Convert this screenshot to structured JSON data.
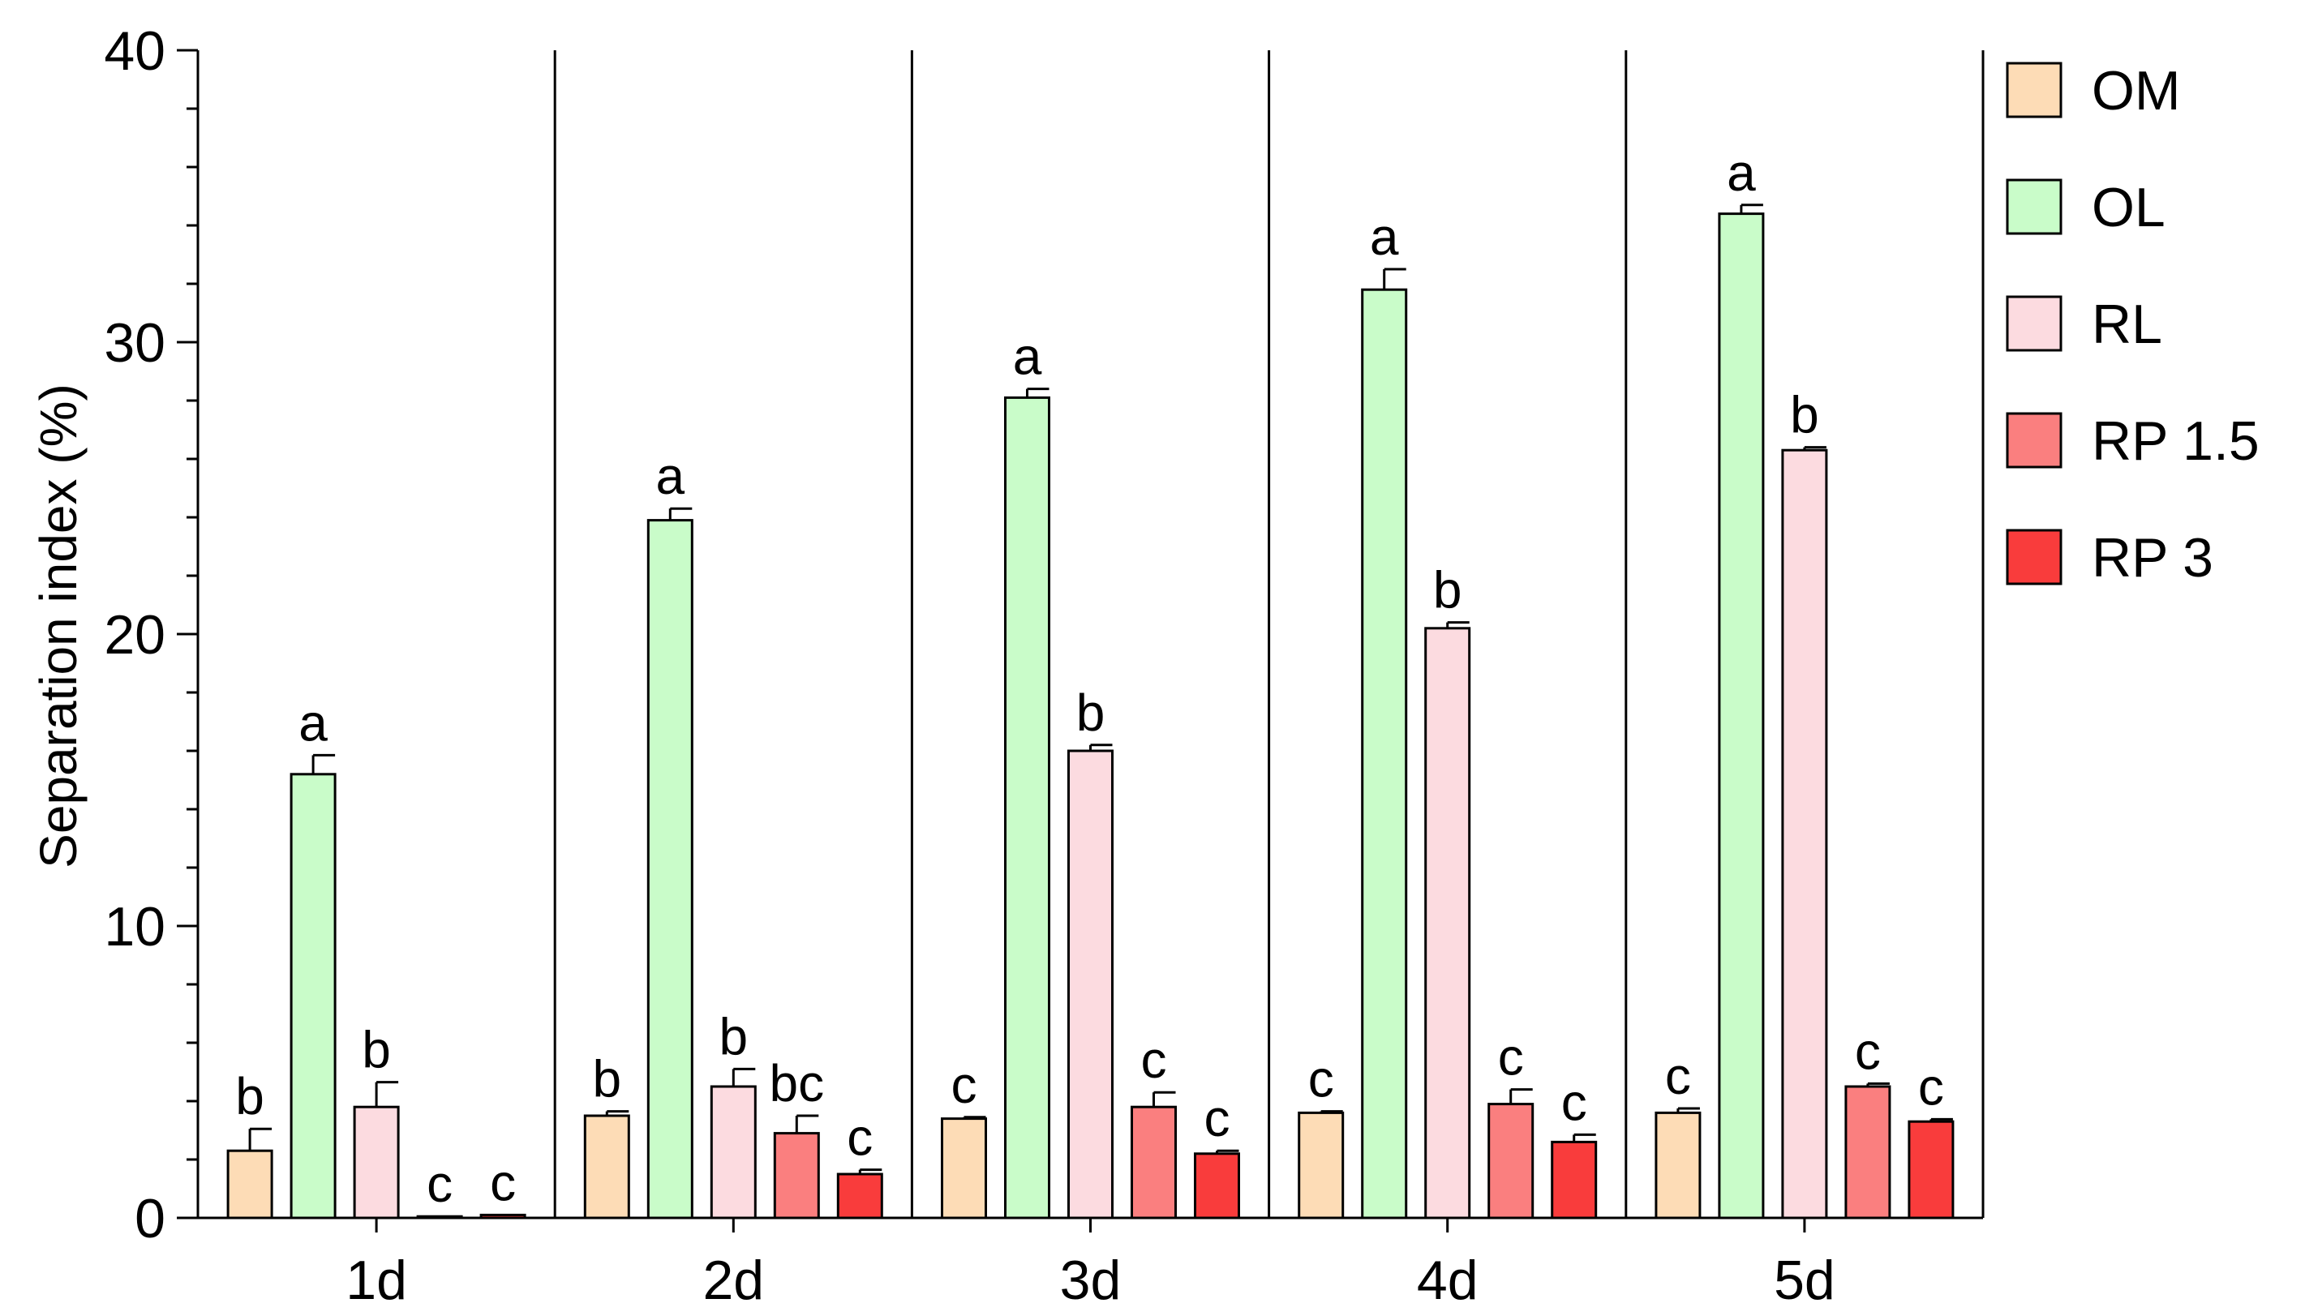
{
  "chart_data": {
    "type": "bar",
    "title": "",
    "xlabel": "",
    "ylabel": "Separation index (%)",
    "ylim": [
      0,
      40
    ],
    "yticks": [
      "0",
      "10",
      "20",
      "30",
      "40"
    ],
    "grid": false,
    "legend_position": "right",
    "categories": [
      "1d",
      "2d",
      "3d",
      "4d",
      "5d"
    ],
    "series": [
      {
        "name": "OM",
        "color": "#fddcb6",
        "values": [
          2.3,
          3.5,
          3.4,
          3.6,
          3.6
        ],
        "errors": [
          0.75,
          0.15,
          0.05,
          0.05,
          0.15
        ],
        "letters": [
          "b",
          "b",
          "c",
          "c",
          "c"
        ]
      },
      {
        "name": "OL",
        "color": "#c9fcc9",
        "values": [
          15.2,
          23.9,
          28.1,
          31.8,
          34.4
        ],
        "errors": [
          0.65,
          0.4,
          0.3,
          0.7,
          0.3
        ],
        "letters": [
          "a",
          "a",
          "a",
          "a",
          "a"
        ]
      },
      {
        "name": "RL",
        "color": "#fcdbe0",
        "values": [
          3.8,
          4.5,
          16.0,
          20.2,
          26.3
        ],
        "errors": [
          0.85,
          0.6,
          0.2,
          0.2,
          0.1
        ],
        "letters": [
          "b",
          "b",
          "b",
          "b",
          "b"
        ]
      },
      {
        "name": "RP 1.5",
        "color": "#fa7f7f",
        "values": [
          0.05,
          2.9,
          3.8,
          3.9,
          4.5
        ],
        "errors": [
          0.0,
          0.6,
          0.5,
          0.5,
          0.1
        ],
        "letters": [
          "c",
          "bc",
          "c",
          "c",
          "c"
        ]
      },
      {
        "name": "RP 3",
        "color": "#f93c3c",
        "values": [
          0.1,
          1.5,
          2.2,
          2.6,
          3.3
        ],
        "errors": [
          0.0,
          0.15,
          0.1,
          0.25,
          0.08
        ],
        "letters": [
          "c",
          "c",
          "c",
          "c",
          "c"
        ]
      }
    ]
  }
}
